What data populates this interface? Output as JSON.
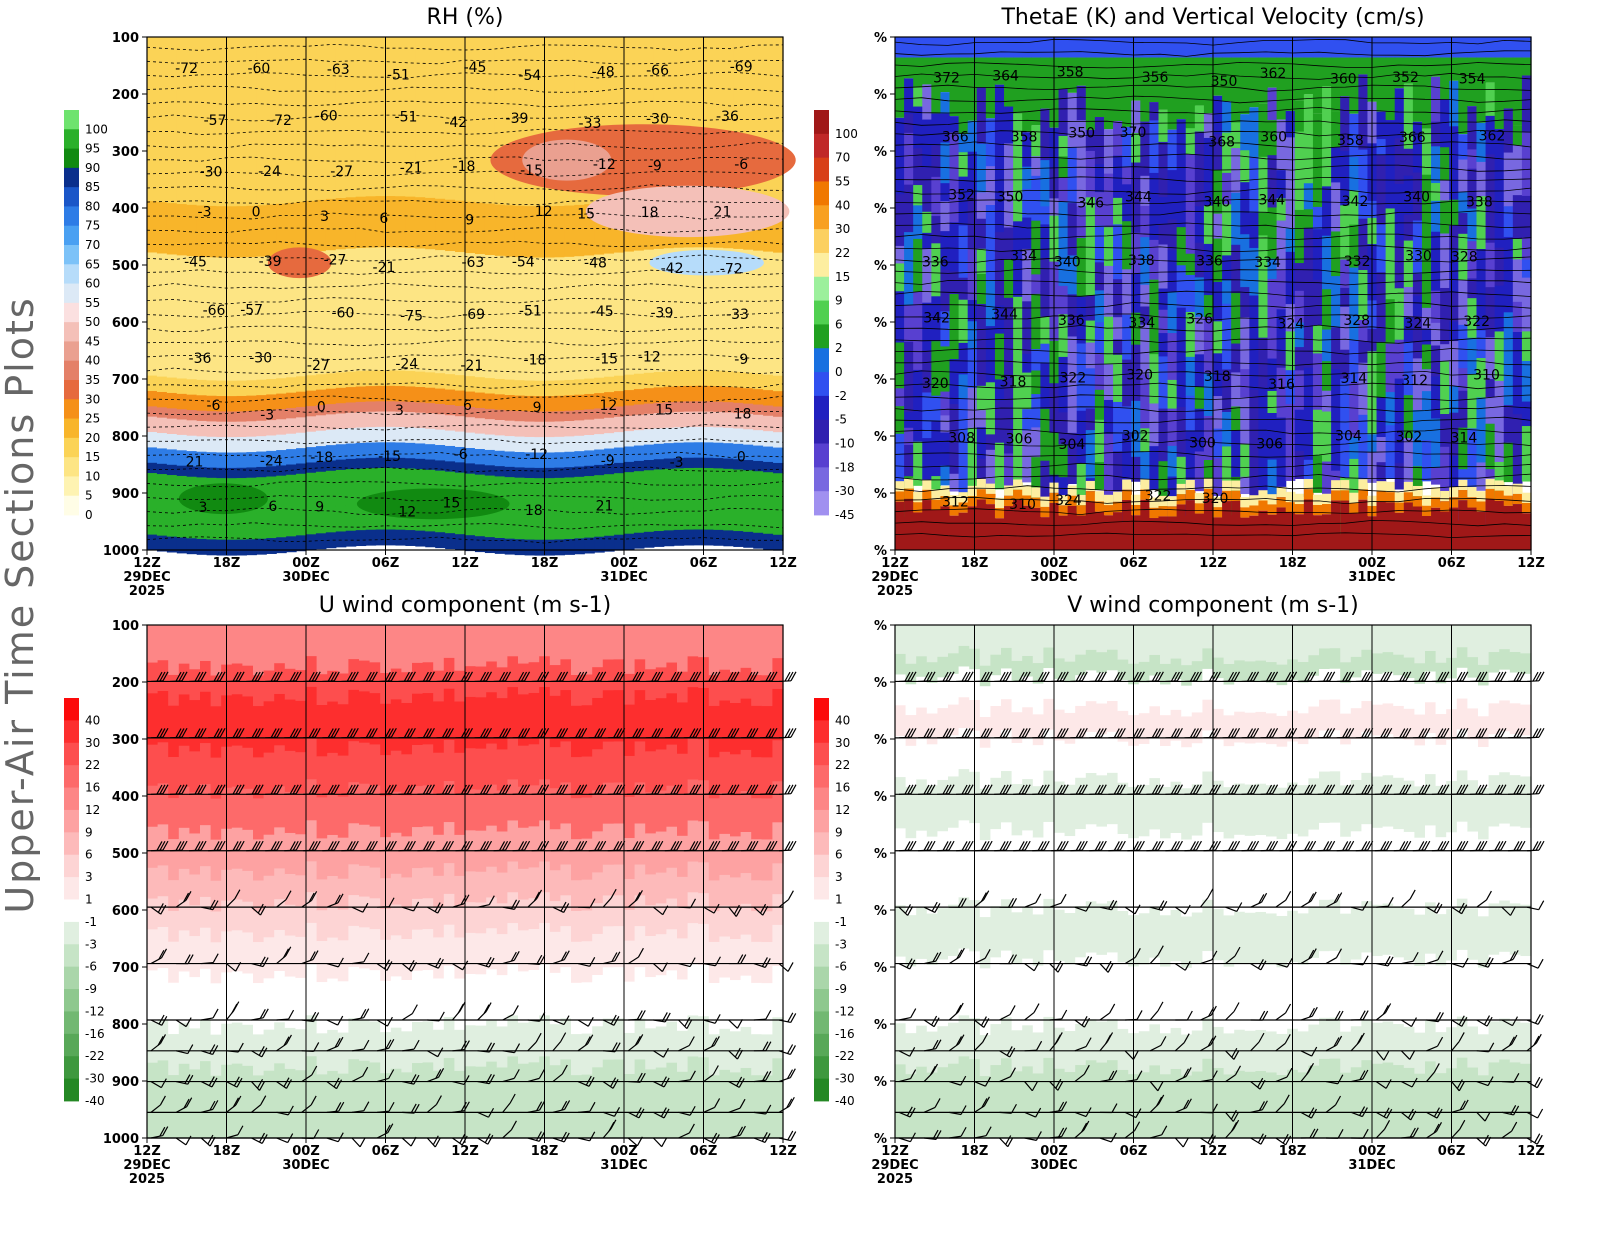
{
  "page": {
    "side_title": "Upper-Air Time Sections Plots"
  },
  "time_axis": {
    "ticks": [
      "12Z",
      "18Z",
      "00Z",
      "06Z",
      "12Z",
      "18Z",
      "00Z",
      "06Z",
      "12Z"
    ],
    "dates": [
      {
        "tick_index": 0,
        "label": "29DEC"
      },
      {
        "tick_index": 2,
        "label": "30DEC"
      },
      {
        "tick_index": 6,
        "label": "31DEC"
      }
    ],
    "year": "2025"
  },
  "chart_data": [
    {
      "id": "rh",
      "type": "heatmap",
      "title": "RH (%)",
      "x": [
        "12Z 29DEC",
        "18Z",
        "00Z 30DEC",
        "06Z",
        "12Z",
        "18Z",
        "00Z 31DEC",
        "06Z",
        "12Z"
      ],
      "y_axis": {
        "ticks": [
          "100",
          "200",
          "300",
          "400",
          "500",
          "600",
          "700",
          "800",
          "900",
          "1000"
        ],
        "inverted": true
      },
      "colorbar": {
        "labels": [
          "100",
          "95",
          "90",
          "85",
          "80",
          "75",
          "70",
          "65",
          "60",
          "55",
          "50",
          "45",
          "40",
          "35",
          "30",
          "25",
          "20",
          "15",
          "10",
          "5",
          "0"
        ],
        "colors": [
          "#6ee36e",
          "#2ab02a",
          "#118a11",
          "#0a2f8c",
          "#1a56c8",
          "#2e7ce6",
          "#4aa0f2",
          "#7cc2f8",
          "#b6dcfa",
          "#dce9f6",
          "#fbe0e0",
          "#f4c0b8",
          "#eaa090",
          "#e48068",
          "#e66a3e",
          "#f59018",
          "#f8b52a",
          "#fbd356",
          "#fde584",
          "#fef3b2",
          "#fffde6"
        ]
      },
      "contours": {
        "labels": [
          "-72",
          "-60",
          "-63",
          "-51",
          "-45",
          "-54",
          "-48",
          "-66",
          "-69",
          "-57",
          "-72",
          "-60",
          "-51",
          "-42",
          "-39",
          "-33",
          "-30",
          "-36",
          "-30",
          "-24",
          "-27",
          "-21",
          "-18",
          "-15",
          "-12",
          "-9",
          "-6",
          "-3",
          "0",
          "3",
          "6",
          "9",
          "12",
          "15",
          "18",
          "21",
          "-45",
          "-39",
          "-27",
          "-21",
          "-63",
          "-54",
          "-48",
          "-42",
          "-72",
          "-66",
          "-57",
          "-60",
          "-75",
          "-69",
          "-51",
          "-45",
          "-39",
          "-33",
          "-36",
          "-30",
          "-27",
          "-24",
          "-21",
          "-18",
          "-15",
          "-12",
          "-9",
          "-6",
          "-3",
          "0",
          "3",
          "6",
          "9",
          "12",
          "15",
          "18",
          "21",
          "-24",
          "-18",
          "-15",
          "-6",
          "-12",
          "-9",
          "-3",
          "0",
          "3",
          "6",
          "9",
          "12",
          "15",
          "18",
          "21"
        ]
      }
    },
    {
      "id": "thetae",
      "type": "heatmap",
      "title": "ThetaE (K) and Vertical Velocity (cm/s)",
      "x": [
        "12Z 29DEC",
        "18Z",
        "00Z 30DEC",
        "06Z",
        "12Z",
        "18Z",
        "00Z 31DEC",
        "06Z",
        "12Z"
      ],
      "y_axis": {
        "ticks": [
          "%",
          "%",
          "%",
          "%",
          "%",
          "%",
          "%",
          "%",
          "%",
          "%"
        ]
      },
      "colorbar": {
        "labels": [
          "100",
          "70",
          "55",
          "40",
          "30",
          "22",
          "15",
          "9",
          "6",
          "2",
          "0",
          "-2",
          "-5",
          "-10",
          "-18",
          "-30",
          "-45"
        ],
        "colors": [
          "#a01818",
          "#c02828",
          "#d84018",
          "#f07800",
          "#f8a020",
          "#fcd060",
          "#fdeea0",
          "#9cf09c",
          "#50d050",
          "#20a020",
          "#1870e0",
          "#3050f0",
          "#2020c0",
          "#3020b0",
          "#5840d0",
          "#7868e0",
          "#a090f0"
        ]
      },
      "contours": {
        "labels": [
          "372",
          "364",
          "358",
          "356",
          "350",
          "362",
          "360",
          "352",
          "354",
          "366",
          "358",
          "350",
          "370",
          "368",
          "360",
          "358",
          "366",
          "362",
          "352",
          "350",
          "346",
          "344",
          "346",
          "344",
          "342",
          "340",
          "338",
          "336",
          "334",
          "340",
          "338",
          "336",
          "334",
          "332",
          "330",
          "328",
          "342",
          "344",
          "336",
          "334",
          "326",
          "324",
          "328",
          "324",
          "322",
          "320",
          "318",
          "322",
          "320",
          "318",
          "316",
          "314",
          "312",
          "310",
          "308",
          "306",
          "304",
          "302",
          "300",
          "306",
          "304",
          "302",
          "314",
          "312",
          "310",
          "324",
          "322",
          "320"
        ]
      }
    },
    {
      "id": "u",
      "type": "heatmap",
      "title": "U wind component (m s-1)",
      "x": [
        "12Z 29DEC",
        "18Z",
        "00Z 30DEC",
        "06Z",
        "12Z",
        "18Z",
        "00Z 31DEC",
        "06Z",
        "12Z"
      ],
      "y_axis": {
        "ticks": [
          "100",
          "200",
          "300",
          "400",
          "500",
          "600",
          "700",
          "800",
          "900",
          "1000"
        ]
      },
      "colorbar": {
        "labels": [
          "40",
          "30",
          "22",
          "16",
          "12",
          "9",
          "6",
          "3",
          "1",
          "-1",
          "-3",
          "-6",
          "-9",
          "-12",
          "-16",
          "-22",
          "-30",
          "-40"
        ],
        "colors": [
          "#fc0a0a",
          "#fd2e2e",
          "#fd4e4e",
          "#fd6a6a",
          "#fd8686",
          "#fda2a2",
          "#fdbaba",
          "#fdd4d4",
          "#fde8e8",
          "#ffffff",
          "#e0efe0",
          "#c6e4c6",
          "#aad6aa",
          "#8ec88e",
          "#72b872",
          "#58a858",
          "#3e983e",
          "#248824"
        ]
      }
    },
    {
      "id": "v",
      "type": "heatmap",
      "title": "V wind component (m s-1)",
      "x": [
        "12Z 29DEC",
        "18Z",
        "00Z 30DEC",
        "06Z",
        "12Z",
        "18Z",
        "00Z 31DEC",
        "06Z",
        "12Z"
      ],
      "y_axis": {
        "ticks": [
          "%",
          "%",
          "%",
          "%",
          "%",
          "%",
          "%",
          "%",
          "%",
          "%"
        ]
      },
      "colorbar": {
        "labels": [
          "40",
          "30",
          "22",
          "16",
          "12",
          "9",
          "6",
          "3",
          "1",
          "-1",
          "-3",
          "-6",
          "-9",
          "-12",
          "-16",
          "-22",
          "-30",
          "-40"
        ],
        "colors": [
          "#fc0a0a",
          "#fd2e2e",
          "#fd4e4e",
          "#fd6a6a",
          "#fd8686",
          "#fda2a2",
          "#fdbaba",
          "#fdd4d4",
          "#fde8e8",
          "#ffffff",
          "#e0efe0",
          "#c6e4c6",
          "#aad6aa",
          "#8ec88e",
          "#72b872",
          "#58a858",
          "#3e983e",
          "#248824"
        ]
      }
    }
  ]
}
